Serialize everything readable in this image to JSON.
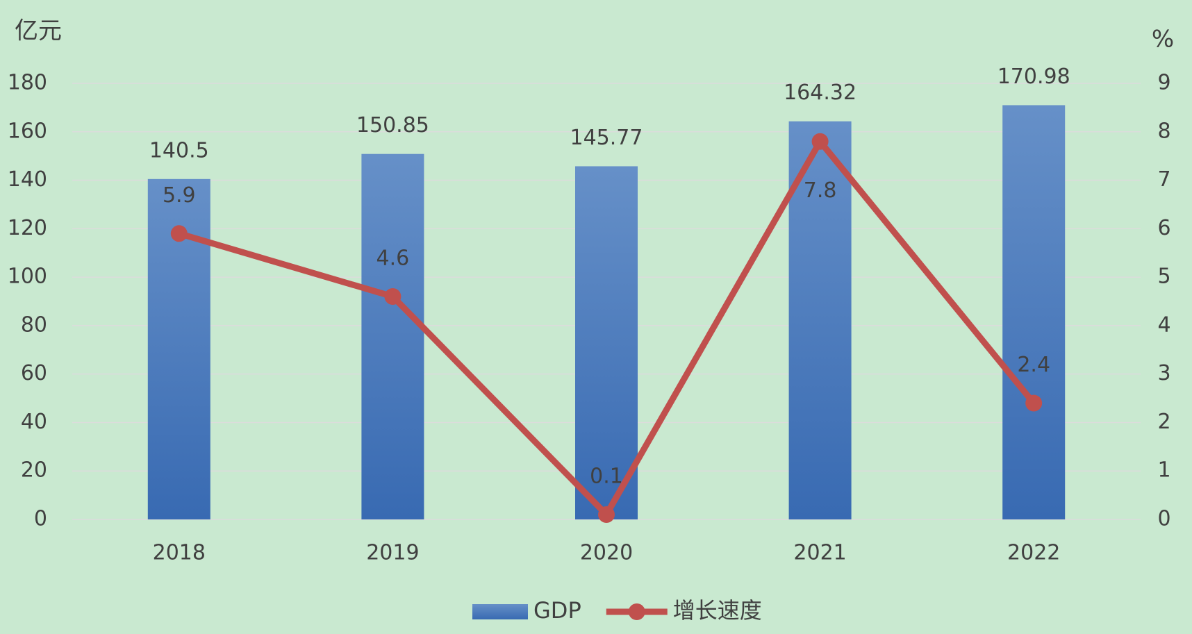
{
  "chart_data": {
    "type": "bar-line",
    "y_label": "亿元",
    "y2_label": "%",
    "categories": [
      "2018",
      "2019",
      "2020",
      "2021",
      "2022"
    ],
    "series": [
      {
        "name": "GDP",
        "type": "bar",
        "color": "#4a7cc0",
        "values": [
          140.5,
          150.85,
          145.77,
          164.32,
          170.98
        ]
      },
      {
        "name": "增长速度",
        "type": "line",
        "axis": "y2",
        "color": "#c0504d",
        "values": [
          5.9,
          4.6,
          0.1,
          7.8,
          2.4
        ]
      }
    ],
    "ylim": [
      0,
      180
    ],
    "yticks": [
      0,
      20,
      40,
      60,
      80,
      100,
      120,
      140,
      160,
      180
    ],
    "y2lim": [
      0,
      9
    ],
    "y2ticks": [
      0,
      1,
      2,
      3,
      4,
      5,
      6,
      7,
      8,
      9
    ],
    "grid": true,
    "legend": "bottom"
  }
}
